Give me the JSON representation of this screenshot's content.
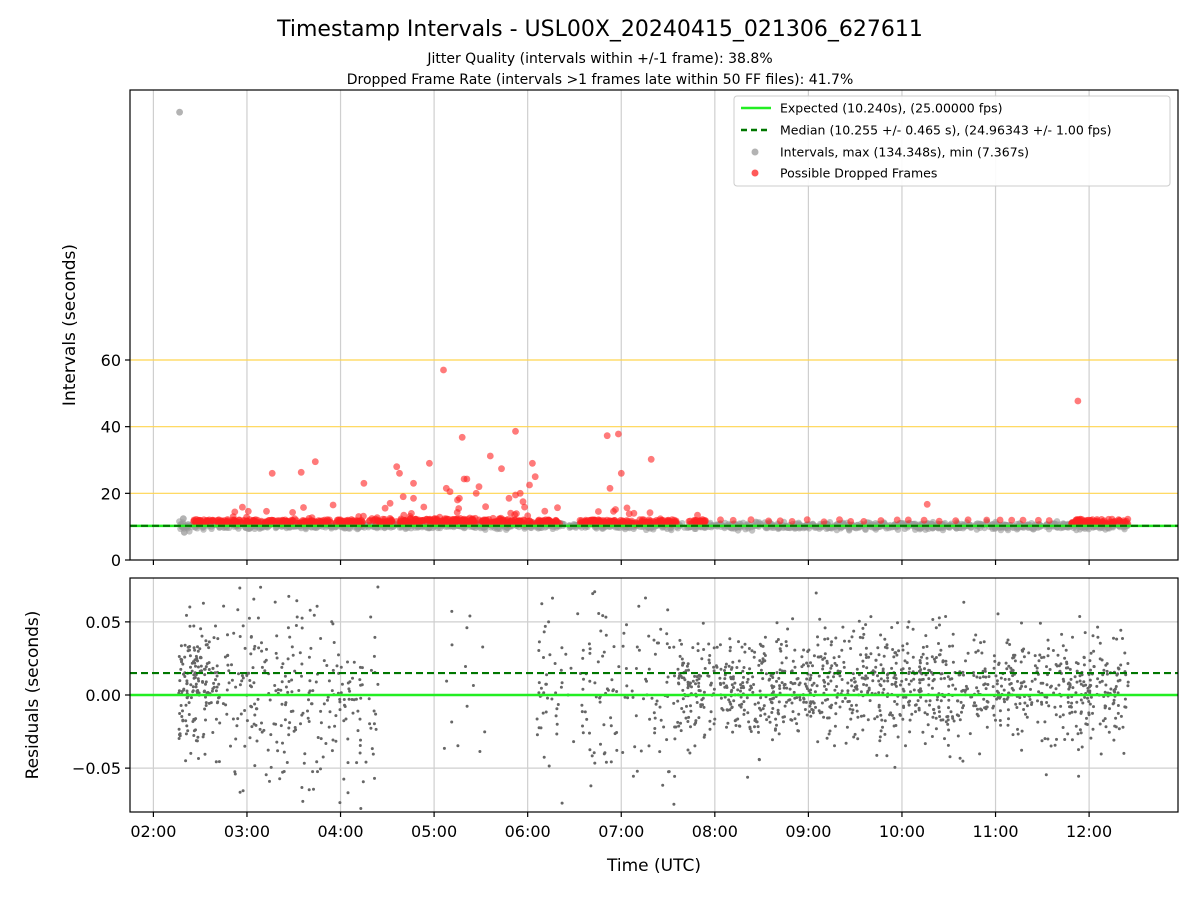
{
  "chart_data": [
    {
      "type": "scatter",
      "panel": "intervals",
      "title": "Timestamp Intervals - USL00X_20240415_021306_627611",
      "subtitle_lines": [
        "Jitter Quality (intervals within +/-1 frame): 38.8%",
        "Dropped Frame Rate (intervals >1 frames late within 50 FF files): 41.7%"
      ],
      "xlabel": "",
      "ylabel": "Intervals (seconds)",
      "x_range_hours": [
        1.75,
        12.95
      ],
      "ylim": [
        0,
        141
      ],
      "yticks": [
        0,
        20,
        40,
        60
      ],
      "ygrid_color": "#ffd54f",
      "grid": true,
      "expected_interval": 10.24,
      "median_interval": 10.255,
      "colors": {
        "expected": "#22ee22",
        "median": "#007700",
        "intervals": "#999999",
        "dropped": "#ff2222"
      },
      "legend_position": "top-right",
      "legend": [
        {
          "label": "Expected (10.240s), (25.00000 fps)",
          "style": "line",
          "color": "#22ee22"
        },
        {
          "label": "Median (10.255 +/- 0.465 s), (24.96343 +/- 1.00 fps)",
          "style": "dashed",
          "color": "#007700"
        },
        {
          "label": "Intervals, max (134.348s), min (7.367s)",
          "style": "dot",
          "color": "#999999"
        },
        {
          "label": "Possible Dropped Frames",
          "style": "dot",
          "color": "#ff2222"
        }
      ],
      "intervals_series": {
        "x_start": 2.27,
        "x_end": 12.42,
        "count": 1400,
        "baseline": 10.24,
        "spread": 0.8,
        "outliers": [
          {
            "x": 2.28,
            "y": 134.35
          },
          {
            "x": 2.32,
            "y": 12.4
          },
          {
            "x": 2.33,
            "y": 8.3
          }
        ]
      },
      "dropped_frames": {
        "outliers": [
          {
            "x": 3.27,
            "y": 26
          },
          {
            "x": 3.58,
            "y": 26.3
          },
          {
            "x": 3.73,
            "y": 29.5
          },
          {
            "x": 3.92,
            "y": 16.5
          },
          {
            "x": 4.25,
            "y": 23
          },
          {
            "x": 4.53,
            "y": 17
          },
          {
            "x": 4.6,
            "y": 28
          },
          {
            "x": 4.63,
            "y": 26
          },
          {
            "x": 4.67,
            "y": 19
          },
          {
            "x": 4.78,
            "y": 23
          },
          {
            "x": 4.78,
            "y": 18.5
          },
          {
            "x": 4.95,
            "y": 29
          },
          {
            "x": 5.1,
            "y": 57
          },
          {
            "x": 5.13,
            "y": 21.5
          },
          {
            "x": 5.17,
            "y": 20.5
          },
          {
            "x": 5.25,
            "y": 18
          },
          {
            "x": 5.27,
            "y": 18.5
          },
          {
            "x": 5.3,
            "y": 36.8
          },
          {
            "x": 5.32,
            "y": 24.3
          },
          {
            "x": 5.35,
            "y": 24.3
          },
          {
            "x": 5.45,
            "y": 20
          },
          {
            "x": 5.48,
            "y": 22
          },
          {
            "x": 5.55,
            "y": 16
          },
          {
            "x": 5.6,
            "y": 31.2
          },
          {
            "x": 5.72,
            "y": 27.4
          },
          {
            "x": 5.8,
            "y": 18.5
          },
          {
            "x": 5.87,
            "y": 38.6
          },
          {
            "x": 5.87,
            "y": 19.5
          },
          {
            "x": 5.92,
            "y": 20
          },
          {
            "x": 5.95,
            "y": 17.5
          },
          {
            "x": 6.02,
            "y": 22.5
          },
          {
            "x": 6.05,
            "y": 29
          },
          {
            "x": 6.08,
            "y": 25
          },
          {
            "x": 6.85,
            "y": 37.3
          },
          {
            "x": 6.88,
            "y": 21.5
          },
          {
            "x": 6.97,
            "y": 37.8
          },
          {
            "x": 7.0,
            "y": 26
          },
          {
            "x": 7.32,
            "y": 30.2
          },
          {
            "x": 10.27,
            "y": 16.7
          },
          {
            "x": 11.88,
            "y": 47.7
          }
        ],
        "band_segments": [
          [
            2.43,
            3.9
          ],
          [
            3.95,
            4.25
          ],
          [
            4.3,
            6.35
          ],
          [
            6.55,
            7.6
          ],
          [
            7.72,
            7.9
          ]
        ],
        "sparse_start": 7.9,
        "sparse_end": 11.75,
        "dense_end_segment": [
          11.8,
          12.42
        ]
      }
    },
    {
      "type": "scatter",
      "panel": "residuals",
      "xlabel": "Time (UTC)",
      "ylabel": "Residuals (seconds)",
      "ylim": [
        -0.08,
        0.08
      ],
      "yticks": [
        -0.05,
        0.0,
        0.05
      ],
      "ytick_labels": [
        "−0.05",
        "0.00",
        "0.05"
      ],
      "xticks": [
        2,
        3,
        4,
        5,
        6,
        7,
        8,
        9,
        10,
        11,
        12
      ],
      "xtick_labels": [
        "02:00",
        "03:00",
        "04:00",
        "05:00",
        "06:00",
        "07:00",
        "08:00",
        "09:00",
        "10:00",
        "11:00",
        "12:00"
      ],
      "grid": true,
      "expected_residual": 0.0,
      "median_residual": 0.015,
      "dot_color": "#666666",
      "residual_segments": [
        {
          "x0": 2.27,
          "x1": 2.7,
          "count": 170,
          "center": 0.01,
          "spread": 0.03
        },
        {
          "x0": 2.7,
          "x1": 4.4,
          "count": 280,
          "center": 0.0,
          "spread": 0.05
        },
        {
          "x0": 5.0,
          "x1": 5.55,
          "count": 14,
          "center": 0.0,
          "spread": 0.06
        },
        {
          "x0": 6.1,
          "x1": 7.6,
          "count": 170,
          "center": 0.0,
          "spread": 0.05
        },
        {
          "x0": 7.6,
          "x1": 12.42,
          "count": 1200,
          "center": 0.005,
          "spread": 0.028
        }
      ]
    }
  ]
}
